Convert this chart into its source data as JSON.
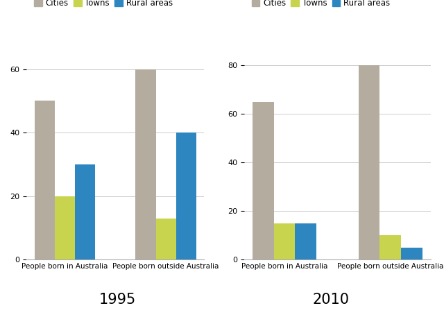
{
  "chart1": {
    "title": "1995",
    "categories": [
      "People born in Australia",
      "People born outside Australia"
    ],
    "series": {
      "Cities": [
        50,
        60
      ],
      "Towns": [
        20,
        13
      ],
      "Rural areas": [
        30,
        40
      ]
    },
    "ylim": [
      0,
      65
    ],
    "yticks": [
      0,
      20,
      40,
      60
    ]
  },
  "chart2": {
    "title": "2010",
    "categories": [
      "People born in Australia",
      "People born outside Australia"
    ],
    "series": {
      "Cities": [
        65,
        80
      ],
      "Towns": [
        15,
        10
      ],
      "Rural areas": [
        15,
        5
      ]
    },
    "ylim": [
      0,
      85
    ],
    "yticks": [
      0,
      20,
      40,
      60,
      80
    ]
  },
  "colors": {
    "Cities": "#b5aca0",
    "Towns": "#c8d44e",
    "Rural areas": "#2e86c1"
  },
  "legend_labels": [
    "Cities",
    "Towns",
    "Rural areas"
  ],
  "bar_width": 0.2,
  "background_color": "#ffffff",
  "title_fontsize": 15,
  "legend_fontsize": 8.5,
  "tick_fontsize": 8,
  "xtick_fontsize": 7.5
}
